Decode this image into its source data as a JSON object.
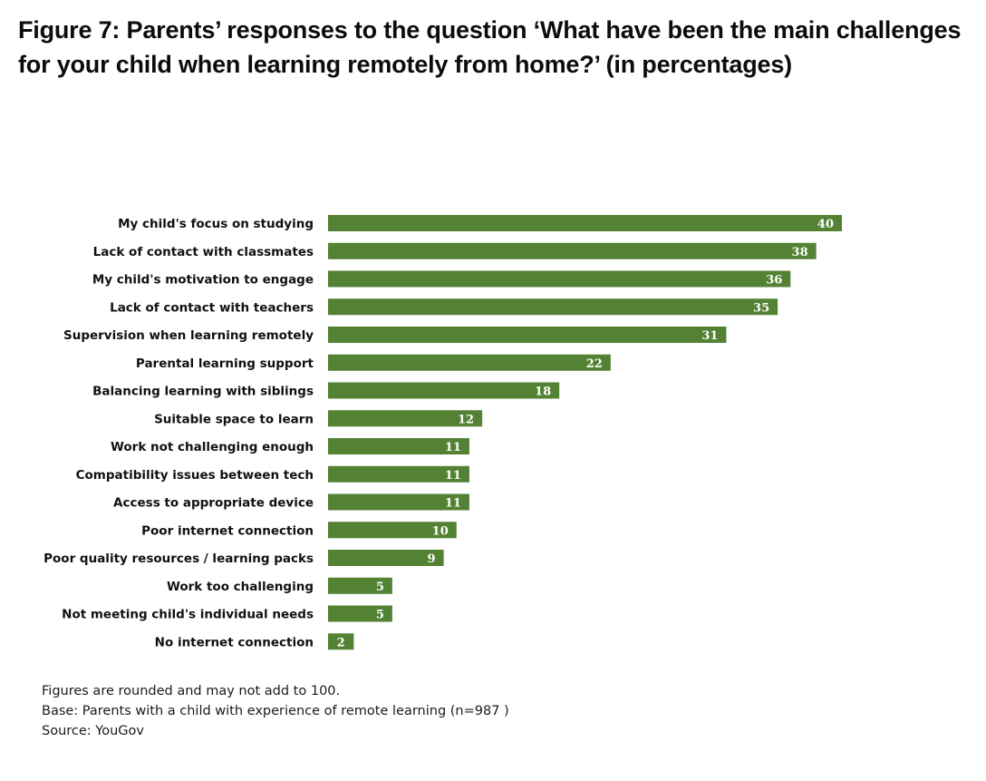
{
  "title": "Figure 7: Parents’ responses to the question ‘What have been the main challenges for your child when learning remotely from home?’ (in percentages)",
  "notes": {
    "rounding": "Figures are rounded and may not add to 100.",
    "base": "Base: Parents with  a child  with  experience of remote learning  (n=987 )",
    "source": "Source: YouGov"
  },
  "colors": {
    "bar": "#548235",
    "value_label": "#ffffff"
  },
  "chart_data": {
    "type": "bar",
    "orientation": "horizontal",
    "title": "",
    "xlabel": "",
    "ylabel": "",
    "xlim": [
      0,
      40
    ],
    "grid": false,
    "legend": "none",
    "categories": [
      "My child's focus on studying",
      "Lack of contact with classmates",
      "My child's motivation to engage",
      "Lack of contact with teachers",
      "Supervision when learning remotely",
      "Parental learning support",
      "Balancing learning with siblings",
      "Suitable space to learn",
      "Work not challenging enough",
      "Compatibility issues between tech",
      "Access to appropriate device",
      "Poor internet connection",
      "Poor quality resources / learning packs",
      "Work too challenging",
      "Not meeting child's individual needs",
      "No internet connection"
    ],
    "values": [
      40,
      38,
      36,
      35,
      31,
      22,
      18,
      12,
      11,
      11,
      11,
      10,
      9,
      5,
      5,
      2
    ]
  }
}
